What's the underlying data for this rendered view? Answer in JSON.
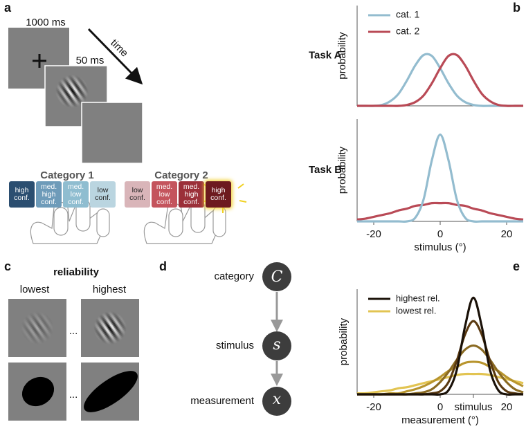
{
  "panel_letters": [
    "a",
    "b",
    "c",
    "d",
    "e"
  ],
  "panel_a": {
    "fixation_duration": "1000 ms",
    "stimulus_duration": "50 ms",
    "time_label": "time",
    "categories": [
      {
        "name": "Category 1",
        "buttons": [
          "high conf.",
          "med. high conf.",
          "med. low conf.",
          "low conf."
        ]
      },
      {
        "name": "Category 2",
        "buttons": [
          "low conf.",
          "med. low conf.",
          "med. high conf.",
          "high conf."
        ]
      }
    ]
  },
  "panel_c": {
    "title": "reliability",
    "columns": [
      "lowest",
      "highest"
    ],
    "ellipses": [
      "...",
      "..."
    ]
  },
  "panel_d": {
    "nodes": [
      {
        "label": "category",
        "symbol": "C"
      },
      {
        "label": "stimulus",
        "symbol": "s"
      },
      {
        "label": "measurement",
        "symbol": "x"
      }
    ]
  },
  "chart_data": [
    {
      "type": "line",
      "title": "Task A",
      "ylabel": "probability",
      "legend": "upper left",
      "xlim": [
        -25,
        25
      ],
      "ylim": [
        0,
        1
      ],
      "x": [
        -25,
        -22.5,
        -20,
        -17.5,
        -15,
        -12.5,
        -10,
        -7.5,
        -5,
        -2.5,
        0,
        2.5,
        5,
        7.5,
        10,
        12.5,
        15,
        17.5,
        20,
        22.5,
        25
      ],
      "series": [
        {
          "name": "cat. 1",
          "color": "#93bccf",
          "values": [
            0,
            0,
            0,
            0.01,
            0.05,
            0.13,
            0.27,
            0.43,
            0.54,
            0.53,
            0.4,
            0.24,
            0.11,
            0.04,
            0.01,
            0,
            0,
            0,
            0,
            0,
            0
          ]
        },
        {
          "name": "cat. 2",
          "color": "#b94a56",
          "values": [
            0,
            0,
            0,
            0,
            0,
            0,
            0.01,
            0.04,
            0.11,
            0.24,
            0.4,
            0.53,
            0.54,
            0.43,
            0.27,
            0.13,
            0.05,
            0.01,
            0,
            0,
            0
          ]
        }
      ]
    },
    {
      "type": "line",
      "title": "Task B",
      "ylabel": "probability",
      "xlabel": "stimulus (°)",
      "xlim": [
        -25,
        25
      ],
      "ylim": [
        0,
        1
      ],
      "xticks": [
        -20,
        0,
        20
      ],
      "x": [
        -25,
        -22.5,
        -20,
        -17.5,
        -15,
        -12.5,
        -10,
        -7.5,
        -5,
        -2.5,
        0,
        2.5,
        5,
        7.5,
        10,
        12.5,
        15,
        17.5,
        20,
        22.5,
        25
      ],
      "series": [
        {
          "color": "#b94a56",
          "values": [
            0.02,
            0.03,
            0.05,
            0.07,
            0.09,
            0.12,
            0.14,
            0.17,
            0.18,
            0.2,
            0.2,
            0.2,
            0.18,
            0.17,
            0.14,
            0.12,
            0.09,
            0.07,
            0.05,
            0.03,
            0.02
          ]
        },
        {
          "color": "#93bccf",
          "values": [
            0,
            0,
            0,
            0,
            0,
            0,
            0,
            0.04,
            0.24,
            0.67,
            0.95,
            0.67,
            0.24,
            0.04,
            0,
            0,
            0,
            0,
            0,
            0,
            0
          ]
        }
      ]
    },
    {
      "type": "line",
      "ylabel": "probability",
      "xlabel": "measurement (°)",
      "legend": "upper left",
      "xlim": [
        -25,
        25
      ],
      "ylim": [
        0,
        1
      ],
      "xticks": [
        -20,
        0,
        {
          "value": 10,
          "label": "stimulus"
        },
        20
      ],
      "x": [
        -25,
        -22.5,
        -20,
        -17.5,
        -15,
        -12.5,
        -10,
        -7.5,
        -5,
        -2.5,
        0,
        2.5,
        5,
        7.5,
        10,
        12.5,
        15,
        17.5,
        20,
        22.5,
        25
      ],
      "series": [
        {
          "color": "#e2c452",
          "name": "lowest rel.",
          "values": [
            0.01,
            0.01,
            0.02,
            0.03,
            0.04,
            0.06,
            0.07,
            0.09,
            0.11,
            0.13,
            0.15,
            0.17,
            0.19,
            0.2,
            0.2,
            0.2,
            0.19,
            0.17,
            0.15,
            0.13,
            0.11
          ]
        },
        {
          "color": "#b8952e",
          "values": [
            0,
            0,
            0,
            0,
            0.01,
            0.01,
            0.03,
            0.05,
            0.08,
            0.12,
            0.17,
            0.23,
            0.27,
            0.31,
            0.32,
            0.31,
            0.27,
            0.23,
            0.17,
            0.12,
            0.08
          ]
        },
        {
          "color": "#8a6a22",
          "values": [
            0,
            0,
            0,
            0,
            0,
            0,
            0,
            0.01,
            0.02,
            0.05,
            0.12,
            0.22,
            0.34,
            0.44,
            0.48,
            0.44,
            0.34,
            0.22,
            0.12,
            0.05,
            0.02
          ]
        },
        {
          "color": "#5a3a12",
          "values": [
            0,
            0,
            0,
            0,
            0,
            0,
            0,
            0,
            0,
            0.01,
            0.03,
            0.12,
            0.33,
            0.59,
            0.72,
            0.59,
            0.33,
            0.12,
            0.03,
            0.01,
            0
          ]
        },
        {
          "color": "#1a1108",
          "name": "highest rel.",
          "values": [
            0,
            0,
            0,
            0,
            0,
            0,
            0,
            0,
            0,
            0,
            0,
            0.04,
            0.24,
            0.67,
            0.95,
            0.67,
            0.24,
            0.04,
            0,
            0,
            0
          ]
        }
      ]
    }
  ]
}
